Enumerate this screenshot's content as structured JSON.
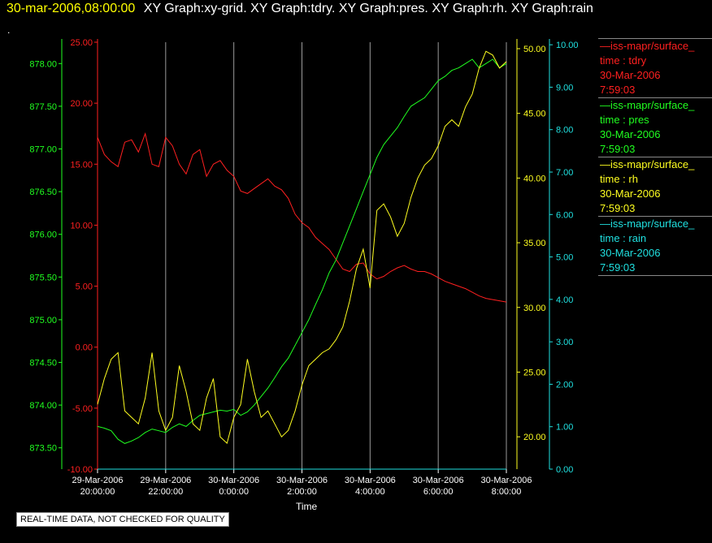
{
  "header": {
    "timestamp": "30-mar-2006,08:00:00",
    "titles": "XY Graph:xy-grid.  XY Graph:tdry.  XY Graph:pres.  XY Graph:rh.  XY Graph:rain"
  },
  "dot": ".",
  "footer": "REAL-TIME DATA, NOT CHECKED FOR QUALITY",
  "legend": [
    {
      "line": "—iss-mapr/surface_",
      "var": "time : tdry",
      "date": "30-Mar-2006",
      "time": "7:59:03",
      "color": "#ff2020"
    },
    {
      "line": "—iss-mapr/surface_",
      "var": "time : pres",
      "date": "30-Mar-2006",
      "time": "7:59:03",
      "color": "#20ff20"
    },
    {
      "line": "—iss-mapr/surface_",
      "var": "time : rh",
      "date": "30-Mar-2006",
      "time": "7:59:03",
      "color": "#ffff20"
    },
    {
      "line": "—iss-mapr/surface_",
      "var": "time : rain",
      "date": "30-Mar-2006",
      "time": "7:59:03",
      "color": "#20e0e0"
    }
  ],
  "chart_data": {
    "type": "line",
    "xlabel": "Time",
    "x_ticks": [
      {
        "d": "29-Mar-2006",
        "t": "20:00:00"
      },
      {
        "d": "29-Mar-2006",
        "t": "22:00:00"
      },
      {
        "d": "30-Mar-2006",
        "t": "0:00:00"
      },
      {
        "d": "30-Mar-2006",
        "t": "2:00:00"
      },
      {
        "d": "30-Mar-2006",
        "t": "4:00:00"
      },
      {
        "d": "30-Mar-2006",
        "t": "6:00:00"
      },
      {
        "d": "30-Mar-2006",
        "t": "8:00:00"
      }
    ],
    "xlim_hours": [
      0,
      12
    ],
    "grid": true,
    "axes": {
      "tdry": {
        "color": "#ff2020",
        "ylim": [
          -10,
          25
        ],
        "ticks": [
          "-10.00",
          "-5.00",
          "0.00",
          "5.00",
          "10.00",
          "15.00",
          "20.00",
          "25.00"
        ]
      },
      "pres": {
        "color": "#20ff20",
        "ylim": [
          873.25,
          878.25
        ],
        "ticks": [
          "873.50",
          "874.00",
          "874.50",
          "875.00",
          "875.50",
          "876.00",
          "876.50",
          "877.00",
          "877.50",
          "878.00"
        ]
      },
      "rh": {
        "color": "#ffff20",
        "ylim": [
          17.5,
          50.5
        ],
        "ticks": [
          "20.00",
          "25.00",
          "30.00",
          "35.00",
          "40.00",
          "45.00",
          "50.00"
        ]
      },
      "rain": {
        "color": "#20e0e0",
        "ylim": [
          0,
          10.06
        ],
        "ticks": [
          "0.00",
          "1.00",
          "2.00",
          "3.00",
          "4.00",
          "5.00",
          "6.00",
          "7.00",
          "8.00",
          "9.00",
          "10.00"
        ]
      }
    },
    "series": [
      {
        "key": "tdry",
        "x": [
          0,
          0.2,
          0.4,
          0.6,
          0.8,
          1.0,
          1.2,
          1.4,
          1.6,
          1.8,
          2.0,
          2.2,
          2.4,
          2.6,
          2.8,
          3.0,
          3.2,
          3.4,
          3.6,
          3.8,
          4.0,
          4.2,
          4.4,
          4.6,
          4.8,
          5.0,
          5.2,
          5.4,
          5.6,
          5.8,
          6.0,
          6.2,
          6.4,
          6.6,
          6.8,
          7.0,
          7.2,
          7.4,
          7.6,
          7.8,
          8.0,
          8.2,
          8.4,
          8.6,
          8.8,
          9.0,
          9.2,
          9.4,
          9.6,
          9.8,
          10.0,
          10.2,
          10.4,
          10.6,
          10.8,
          11.0,
          11.2,
          11.4,
          11.6,
          11.8,
          12.0
        ],
        "values": [
          17.2,
          15.8,
          15.2,
          14.8,
          16.8,
          17.0,
          16.0,
          17.5,
          15.0,
          14.8,
          17.2,
          16.5,
          15.0,
          14.2,
          15.8,
          16.2,
          14.0,
          15.0,
          15.3,
          14.5,
          14.0,
          12.8,
          12.6,
          13.0,
          13.4,
          13.8,
          13.2,
          12.9,
          12.2,
          10.9,
          10.2,
          9.8,
          9.0,
          8.5,
          8.0,
          7.2,
          6.4,
          6.2,
          6.8,
          6.9,
          6.0,
          5.6,
          5.8,
          6.2,
          6.5,
          6.7,
          6.4,
          6.2,
          6.2,
          6.0,
          5.7,
          5.4,
          5.2,
          5.0,
          4.8,
          4.5,
          4.2,
          4.0,
          3.9,
          3.8,
          3.7
        ]
      },
      {
        "key": "pres",
        "x": [
          0,
          0.2,
          0.4,
          0.6,
          0.8,
          1.0,
          1.2,
          1.4,
          1.6,
          1.8,
          2.0,
          2.2,
          2.4,
          2.6,
          2.8,
          3.0,
          3.2,
          3.4,
          3.6,
          3.8,
          4.0,
          4.2,
          4.4,
          4.6,
          4.8,
          5.0,
          5.2,
          5.4,
          5.6,
          5.8,
          6.0,
          6.2,
          6.4,
          6.6,
          6.8,
          7.0,
          7.2,
          7.4,
          7.6,
          7.8,
          8.0,
          8.2,
          8.4,
          8.6,
          8.8,
          9.0,
          9.2,
          9.4,
          9.6,
          9.8,
          10.0,
          10.2,
          10.4,
          10.6,
          10.8,
          11.0,
          11.2,
          11.4,
          11.6,
          11.8,
          12.0
        ],
        "values": [
          873.75,
          873.73,
          873.7,
          873.6,
          873.55,
          873.58,
          873.62,
          873.68,
          873.72,
          873.7,
          873.68,
          873.74,
          873.78,
          873.75,
          873.82,
          873.88,
          873.9,
          873.92,
          873.94,
          873.93,
          873.95,
          873.88,
          873.92,
          874.0,
          874.1,
          874.2,
          874.32,
          874.45,
          874.55,
          874.7,
          874.85,
          875.0,
          875.18,
          875.35,
          875.55,
          875.7,
          875.9,
          876.1,
          876.3,
          876.5,
          876.7,
          876.9,
          877.05,
          877.15,
          877.25,
          877.38,
          877.5,
          877.55,
          877.6,
          877.7,
          877.8,
          877.85,
          877.92,
          877.95,
          878.0,
          878.05,
          877.95,
          878.0,
          878.05,
          877.95,
          878.0
        ]
      },
      {
        "key": "rh",
        "x": [
          0,
          0.2,
          0.4,
          0.6,
          0.8,
          1.0,
          1.2,
          1.4,
          1.6,
          1.8,
          2.0,
          2.2,
          2.4,
          2.6,
          2.8,
          3.0,
          3.2,
          3.4,
          3.6,
          3.8,
          4.0,
          4.2,
          4.4,
          4.6,
          4.8,
          5.0,
          5.2,
          5.4,
          5.6,
          5.8,
          6.0,
          6.2,
          6.4,
          6.6,
          6.8,
          7.0,
          7.2,
          7.4,
          7.6,
          7.8,
          8.0,
          8.2,
          8.4,
          8.6,
          8.8,
          9.0,
          9.2,
          9.4,
          9.6,
          9.8,
          10.0,
          10.2,
          10.4,
          10.6,
          10.8,
          11.0,
          11.2,
          11.4,
          11.6,
          11.8,
          12.0
        ],
        "values": [
          22.5,
          24.5,
          26.0,
          26.5,
          22.0,
          21.5,
          21.0,
          23.0,
          26.5,
          22.0,
          20.5,
          21.5,
          25.5,
          23.5,
          21.0,
          20.5,
          23.0,
          24.5,
          20.0,
          19.5,
          21.5,
          22.5,
          26.0,
          23.5,
          21.5,
          22.0,
          21.0,
          20.0,
          20.5,
          22.0,
          24.0,
          25.5,
          26.0,
          26.5,
          26.8,
          27.5,
          28.5,
          30.5,
          33.0,
          34.5,
          31.5,
          37.5,
          38.0,
          37.0,
          35.5,
          36.5,
          38.5,
          40.0,
          41.0,
          41.5,
          42.5,
          44.0,
          44.5,
          44.0,
          45.5,
          46.5,
          48.5,
          49.8,
          49.5,
          48.5,
          49.0
        ]
      },
      {
        "key": "rain",
        "x": [
          0,
          12
        ],
        "values": [
          0.0,
          0.0
        ]
      }
    ]
  }
}
